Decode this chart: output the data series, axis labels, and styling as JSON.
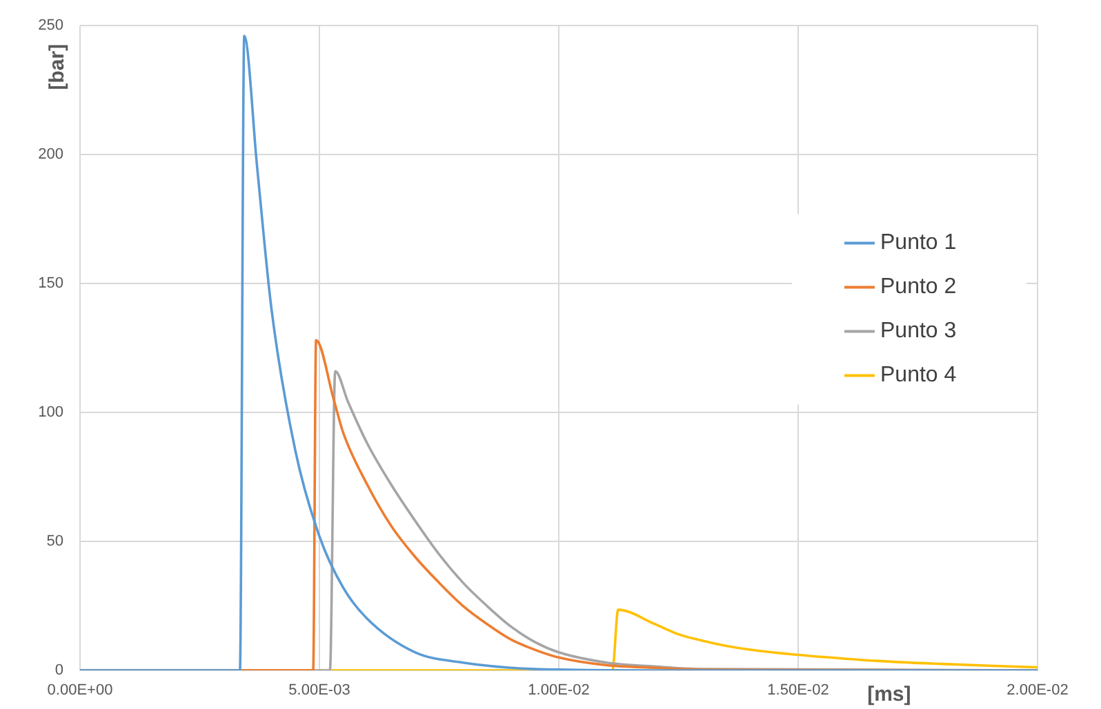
{
  "chart_data": {
    "type": "line",
    "xlabel": "[ms]",
    "ylabel": "[bar]",
    "series": [
      {
        "name": "Punto 1",
        "color": "#5b9bd5",
        "x": [
          0,
          0.00334,
          0.00343,
          0.0037,
          0.004,
          0.0045,
          0.005,
          0.0055,
          0.006,
          0.007,
          0.008,
          0.009,
          0.01,
          0.012,
          0.02
        ],
        "values": [
          0,
          0,
          246,
          195,
          140,
          85,
          52,
          32,
          20,
          7,
          3,
          1,
          0.3,
          0,
          0
        ]
      },
      {
        "name": "Punto 2",
        "color": "#ed7d31",
        "x": [
          0,
          0.00487,
          0.00493,
          0.0053,
          0.0055,
          0.006,
          0.0065,
          0.007,
          0.0075,
          0.008,
          0.0085,
          0.009,
          0.0095,
          0.01,
          0.011,
          0.012,
          0.013,
          0.02
        ],
        "values": [
          0,
          0,
          128,
          105,
          92,
          72,
          56,
          44,
          34,
          25,
          18,
          12,
          8,
          5,
          2,
          1,
          0.3,
          0
        ]
      },
      {
        "name": "Punto 3",
        "color": "#a5a5a5",
        "x": [
          0,
          0.00522,
          0.00533,
          0.0056,
          0.006,
          0.0065,
          0.007,
          0.0075,
          0.008,
          0.0085,
          0.009,
          0.0095,
          0.01,
          0.011,
          0.012,
          0.013,
          0.02
        ],
        "values": [
          0,
          0,
          116,
          104,
          88,
          72,
          58,
          45,
          34,
          25,
          17,
          11,
          7,
          3,
          1.5,
          0.5,
          0
        ]
      },
      {
        "name": "Punto 4",
        "color": "#ffc000",
        "x": [
          0,
          0.01112,
          0.01124,
          0.012,
          0.0125,
          0.013,
          0.0135,
          0.014,
          0.015,
          0.016,
          0.017,
          0.018,
          0.019,
          0.02
        ],
        "values": [
          0,
          0,
          23.5,
          18,
          14,
          11.5,
          9.5,
          8,
          6,
          4.5,
          3.3,
          2.5,
          1.8,
          1.2
        ]
      }
    ],
    "xlim": [
      0,
      0.02
    ],
    "xticks": [
      {
        "value": 0,
        "label": "0.00E+00"
      },
      {
        "value": 0.005,
        "label": "5.00E-03"
      },
      {
        "value": 0.01,
        "label": "1.00E-02"
      },
      {
        "value": 0.015,
        "label": "1.50E-02"
      },
      {
        "value": 0.02,
        "label": "2.00E-02"
      }
    ],
    "ylim": [
      0,
      250
    ],
    "yticks": [
      0,
      50,
      100,
      150,
      200,
      250
    ],
    "grid": true,
    "legend": "right",
    "marker": "none",
    "line_style": "solid"
  }
}
